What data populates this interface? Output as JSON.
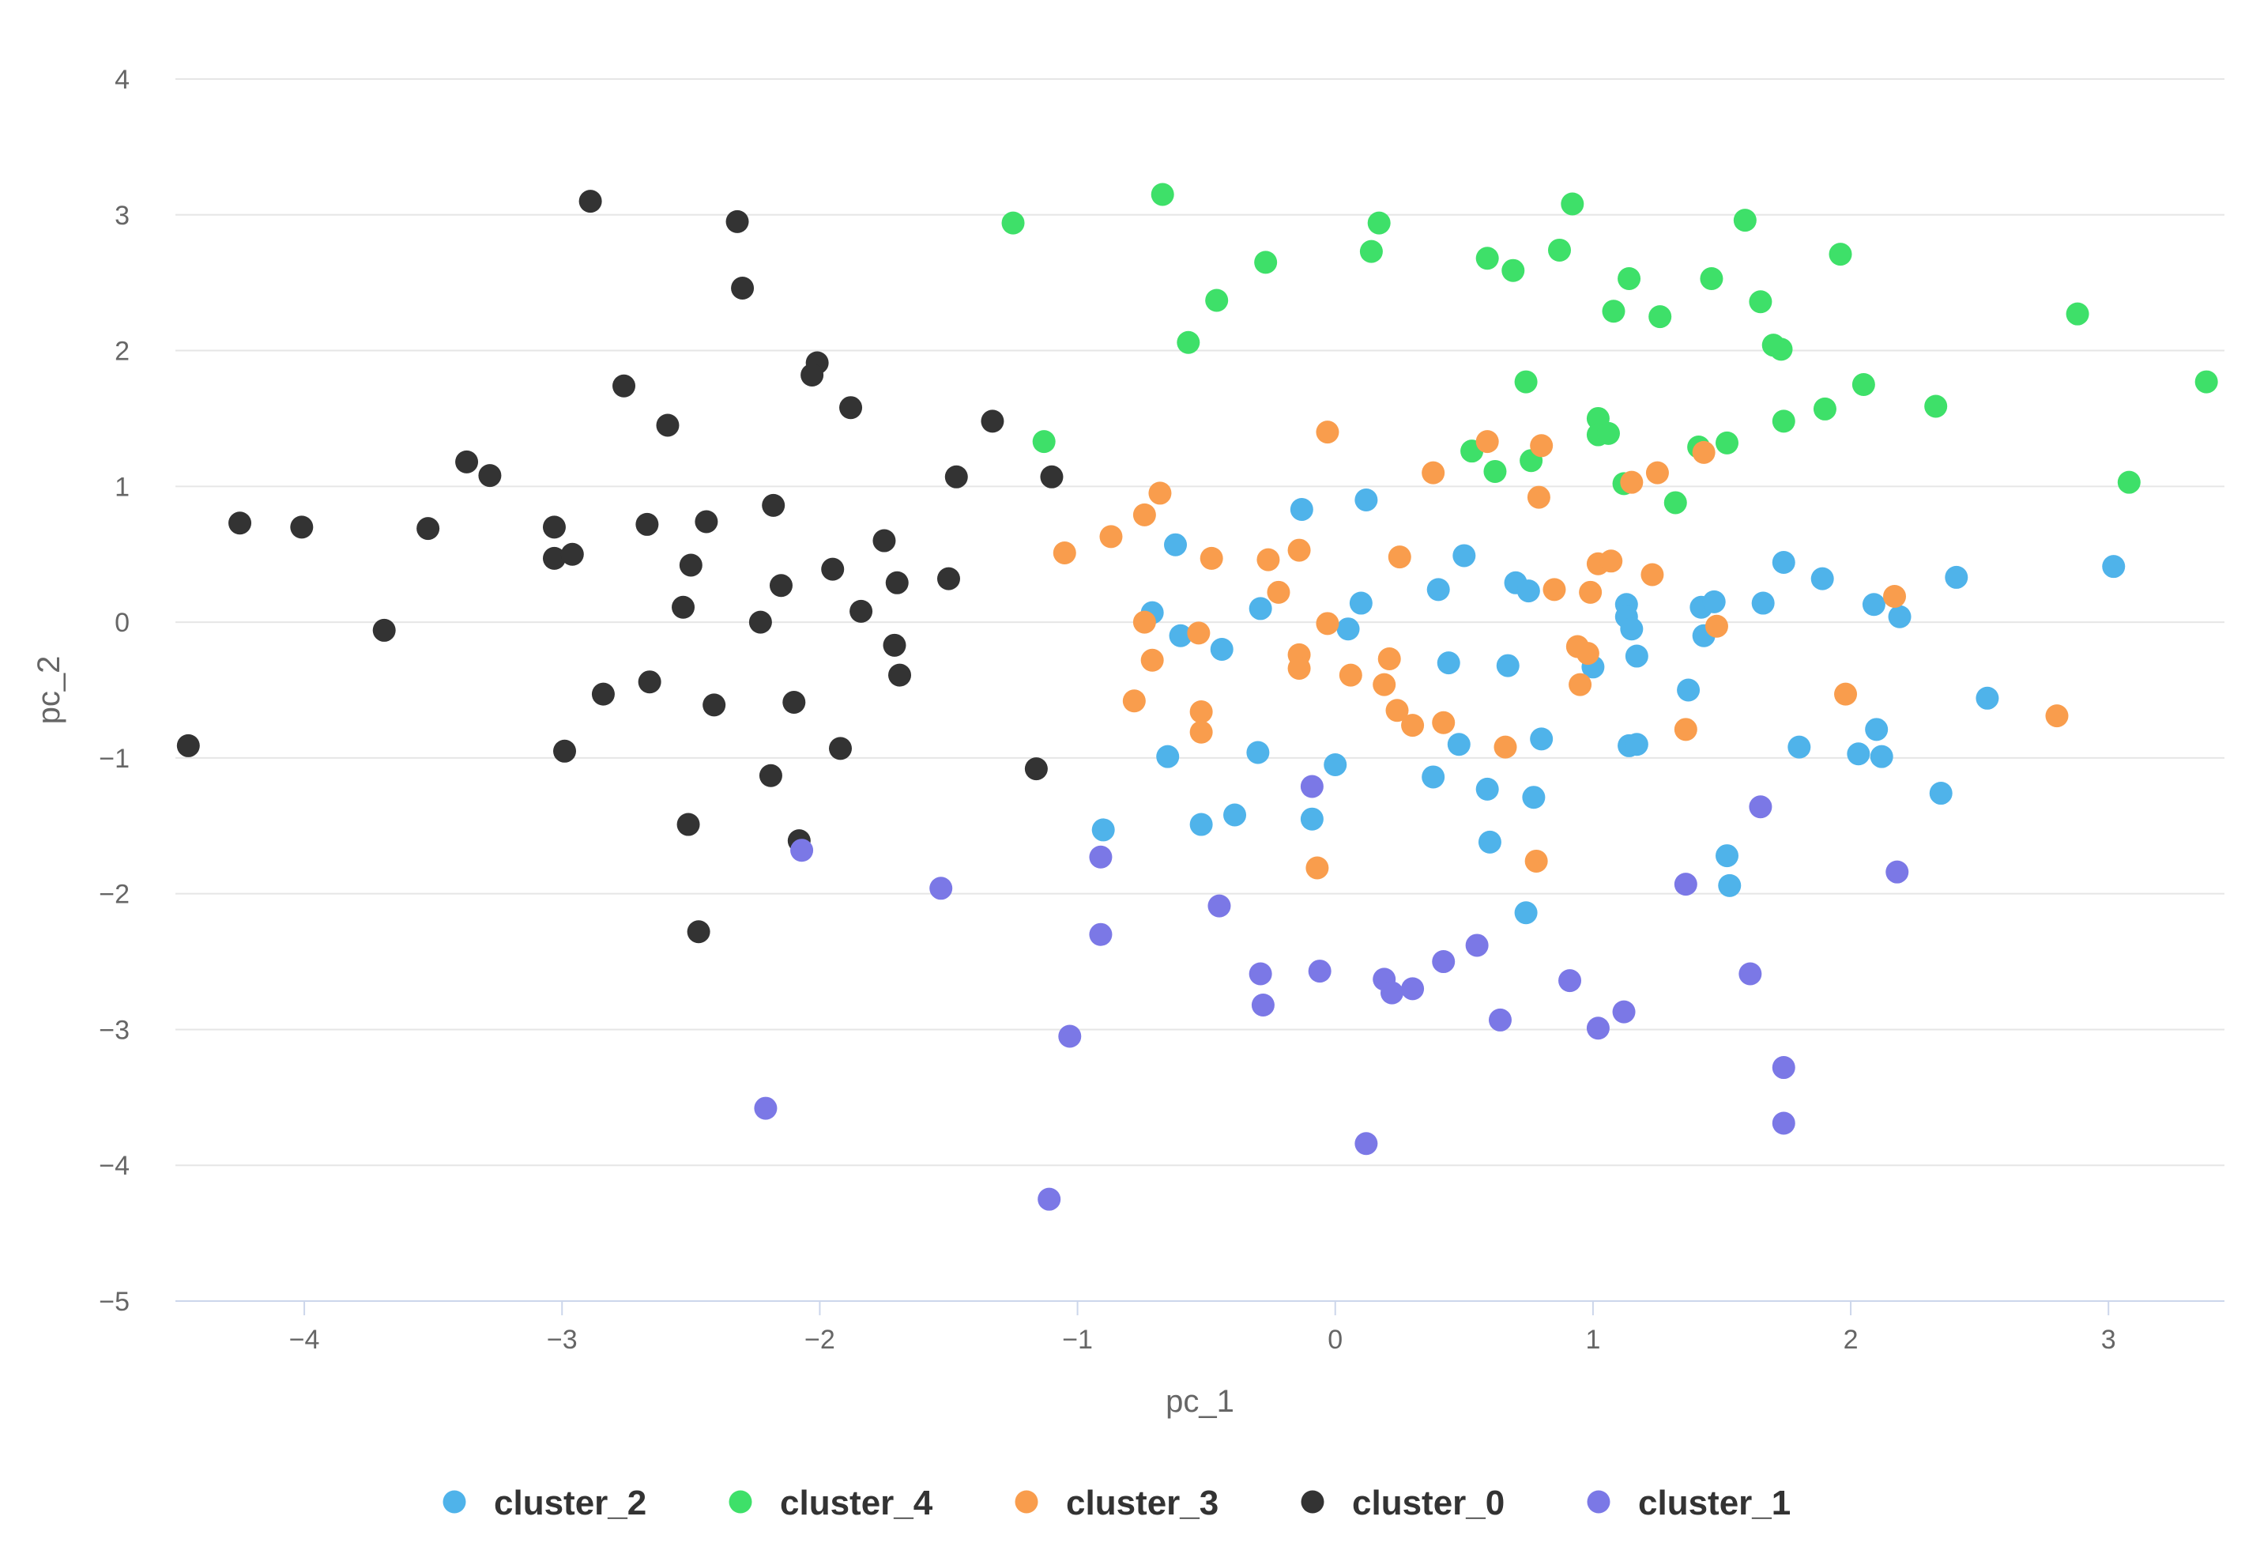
{
  "chart_data": {
    "type": "scatter",
    "xlabel": "pc_1",
    "ylabel": "pc_2",
    "xlim": [
      -4.5,
      3.45
    ],
    "ylim": [
      -5,
      4
    ],
    "x_ticks": [
      -4,
      -3,
      -2,
      -1,
      0,
      1,
      2,
      3
    ],
    "y_ticks": [
      -5,
      -4,
      -3,
      -2,
      -1,
      0,
      1,
      2,
      3,
      4
    ],
    "x_tick_labels": [
      "−4",
      "−3",
      "−2",
      "−1",
      "0",
      "1",
      "2",
      "3"
    ],
    "y_tick_labels": [
      "−5",
      "−4",
      "−3",
      "−2",
      "−1",
      "0",
      "1",
      "2",
      "3",
      "4"
    ],
    "grid": "horizontal",
    "legend_position": "bottom",
    "series": [
      {
        "name": "cluster_2",
        "color": "#4fb3ea",
        "points": [
          [
            -0.13,
            0.83
          ],
          [
            0.12,
            0.9
          ],
          [
            -0.62,
            0.57
          ],
          [
            0.5,
            0.49
          ],
          [
            -0.71,
            0.07
          ],
          [
            -0.6,
            -0.1
          ],
          [
            -0.44,
            -0.2
          ],
          [
            -0.29,
            0.1
          ],
          [
            0.1,
            0.14
          ],
          [
            0.05,
            -0.05
          ],
          [
            0.4,
            0.24
          ],
          [
            0.7,
            0.29
          ],
          [
            0.75,
            0.23
          ],
          [
            1.13,
            0.13
          ],
          [
            1.42,
            0.11
          ],
          [
            1.47,
            0.15
          ],
          [
            1.66,
            0.14
          ],
          [
            1.74,
            0.44
          ],
          [
            1.89,
            0.32
          ],
          [
            2.09,
            0.13
          ],
          [
            2.19,
            0.04
          ],
          [
            2.41,
            0.33
          ],
          [
            3.02,
            0.41
          ],
          [
            1.13,
            0.04
          ],
          [
            1.15,
            -0.05
          ],
          [
            1.0,
            -0.33
          ],
          [
            1.17,
            -0.25
          ],
          [
            1.43,
            -0.1
          ],
          [
            0.44,
            -0.3
          ],
          [
            0.67,
            -0.32
          ],
          [
            1.37,
            -0.5
          ],
          [
            -0.65,
            -0.99
          ],
          [
            -0.3,
            -0.96
          ],
          [
            0.0,
            -1.05
          ],
          [
            0.48,
            -0.9
          ],
          [
            0.8,
            -0.86
          ],
          [
            1.14,
            -0.91
          ],
          [
            1.17,
            -0.9
          ],
          [
            1.8,
            -0.92
          ],
          [
            2.03,
            -0.97
          ],
          [
            2.1,
            -0.79
          ],
          [
            2.12,
            -0.99
          ],
          [
            2.53,
            -0.56
          ],
          [
            -0.09,
            -1.45
          ],
          [
            0.38,
            -1.14
          ],
          [
            0.59,
            -1.23
          ],
          [
            0.77,
            -1.29
          ],
          [
            -0.52,
            -1.49
          ],
          [
            -0.39,
            -1.42
          ],
          [
            -0.9,
            -1.53
          ],
          [
            0.6,
            -1.62
          ],
          [
            1.52,
            -1.72
          ],
          [
            1.53,
            -1.94
          ],
          [
            0.74,
            -2.14
          ],
          [
            2.35,
            -1.26
          ]
        ]
      },
      {
        "name": "cluster_4",
        "color": "#3ee069",
        "points": [
          [
            -1.25,
            2.94
          ],
          [
            -0.67,
            3.15
          ],
          [
            -0.46,
            2.37
          ],
          [
            -0.57,
            2.06
          ],
          [
            -0.27,
            2.65
          ],
          [
            0.14,
            2.73
          ],
          [
            0.17,
            2.94
          ],
          [
            0.59,
            2.68
          ],
          [
            0.69,
            2.59
          ],
          [
            0.87,
            2.74
          ],
          [
            0.92,
            3.08
          ],
          [
            1.08,
            2.29
          ],
          [
            1.14,
            2.53
          ],
          [
            1.26,
            2.25
          ],
          [
            1.46,
            2.53
          ],
          [
            1.59,
            2.96
          ],
          [
            1.65,
            2.36
          ],
          [
            1.7,
            2.04
          ],
          [
            1.73,
            2.01
          ],
          [
            1.96,
            2.71
          ],
          [
            2.05,
            1.75
          ],
          [
            2.33,
            1.59
          ],
          [
            2.88,
            2.27
          ],
          [
            3.38,
            1.77
          ],
          [
            -1.13,
            1.33
          ],
          [
            0.74,
            1.77
          ],
          [
            0.76,
            1.19
          ],
          [
            0.62,
            1.11
          ],
          [
            0.53,
            1.26
          ],
          [
            1.02,
            1.5
          ],
          [
            1.02,
            1.38
          ],
          [
            1.06,
            1.39
          ],
          [
            1.12,
            1.02
          ],
          [
            1.32,
            0.88
          ],
          [
            1.41,
            1.29
          ],
          [
            1.52,
            1.32
          ],
          [
            1.74,
            1.48
          ],
          [
            1.9,
            1.57
          ],
          [
            3.08,
            1.03
          ]
        ]
      },
      {
        "name": "cluster_3",
        "color": "#f99d4d",
        "points": [
          [
            -1.05,
            0.51
          ],
          [
            -0.87,
            0.63
          ],
          [
            -0.74,
            0.79
          ],
          [
            -0.68,
            0.95
          ],
          [
            -0.03,
            1.4
          ],
          [
            -0.26,
            0.46
          ],
          [
            -0.14,
            0.53
          ],
          [
            -0.48,
            0.47
          ],
          [
            0.25,
            0.48
          ],
          [
            0.38,
            1.1
          ],
          [
            0.59,
            1.33
          ],
          [
            0.8,
            1.3
          ],
          [
            0.79,
            0.92
          ],
          [
            1.15,
            1.03
          ],
          [
            1.25,
            1.1
          ],
          [
            1.43,
            1.25
          ],
          [
            -0.22,
            0.22
          ],
          [
            0.85,
            0.24
          ],
          [
            0.99,
            0.22
          ],
          [
            1.02,
            0.43
          ],
          [
            1.07,
            0.45
          ],
          [
            1.23,
            0.35
          ],
          [
            -0.74,
            0.0
          ],
          [
            -0.53,
            -0.08
          ],
          [
            -0.71,
            -0.28
          ],
          [
            -0.14,
            -0.24
          ],
          [
            -0.14,
            -0.34
          ],
          [
            -0.03,
            -0.01
          ],
          [
            0.06,
            -0.39
          ],
          [
            0.19,
            -0.46
          ],
          [
            0.21,
            -0.27
          ],
          [
            0.24,
            -0.65
          ],
          [
            0.3,
            -0.76
          ],
          [
            0.42,
            -0.74
          ],
          [
            0.66,
            -0.92
          ],
          [
            0.94,
            -0.18
          ],
          [
            0.98,
            -0.23
          ],
          [
            0.95,
            -0.46
          ],
          [
            1.48,
            -0.03
          ],
          [
            -0.78,
            -0.58
          ],
          [
            -0.52,
            -0.66
          ],
          [
            -0.52,
            -0.81
          ],
          [
            -0.07,
            -1.81
          ],
          [
            0.78,
            -1.76
          ],
          [
            1.36,
            -0.79
          ],
          [
            1.98,
            -0.53
          ],
          [
            2.17,
            0.19
          ],
          [
            2.8,
            -0.69
          ]
        ]
      },
      {
        "name": "cluster_0",
        "color": "#333333",
        "points": [
          [
            -2.89,
            3.1
          ],
          [
            -2.32,
            2.95
          ],
          [
            -2.3,
            2.46
          ],
          [
            -2.01,
            1.91
          ],
          [
            -2.03,
            1.82
          ],
          [
            -1.88,
            1.58
          ],
          [
            -2.76,
            1.74
          ],
          [
            -2.59,
            1.45
          ],
          [
            -1.33,
            1.48
          ],
          [
            -1.47,
            1.07
          ],
          [
            -1.1,
            1.07
          ],
          [
            -4.25,
            0.73
          ],
          [
            -4.01,
            0.7
          ],
          [
            -3.52,
            0.69
          ],
          [
            -3.37,
            1.18
          ],
          [
            -3.28,
            1.08
          ],
          [
            -3.03,
            0.7
          ],
          [
            -3.03,
            0.47
          ],
          [
            -2.96,
            0.5
          ],
          [
            -2.67,
            0.72
          ],
          [
            -2.44,
            0.74
          ],
          [
            -2.18,
            0.86
          ],
          [
            -2.5,
            0.42
          ],
          [
            -2.15,
            0.27
          ],
          [
            -1.95,
            0.39
          ],
          [
            -1.75,
            0.6
          ],
          [
            -1.7,
            0.29
          ],
          [
            -1.5,
            0.32
          ],
          [
            -2.53,
            0.11
          ],
          [
            -2.23,
            0.0
          ],
          [
            -1.84,
            0.08
          ],
          [
            -1.71,
            -0.17
          ],
          [
            -1.69,
            -0.39
          ],
          [
            -3.69,
            -0.06
          ],
          [
            -4.45,
            -0.91
          ],
          [
            -2.84,
            -0.53
          ],
          [
            -2.66,
            -0.44
          ],
          [
            -2.41,
            -0.61
          ],
          [
            -2.1,
            -0.59
          ],
          [
            -1.92,
            -0.93
          ],
          [
            -2.99,
            -0.95
          ],
          [
            -2.19,
            -1.13
          ],
          [
            -1.16,
            -1.08
          ],
          [
            -2.51,
            -1.49
          ],
          [
            -2.08,
            -1.61
          ],
          [
            -2.47,
            -2.28
          ]
        ]
      },
      {
        "name": "cluster_1",
        "color": "#7b78e6",
        "points": [
          [
            -2.07,
            -1.68
          ],
          [
            -1.53,
            -1.96
          ],
          [
            -0.91,
            -1.73
          ],
          [
            -0.91,
            -2.3
          ],
          [
            -0.45,
            -2.09
          ],
          [
            -0.29,
            -2.59
          ],
          [
            -0.28,
            -2.82
          ],
          [
            -0.09,
            -1.21
          ],
          [
            -0.06,
            -2.57
          ],
          [
            0.19,
            -2.63
          ],
          [
            0.22,
            -2.73
          ],
          [
            0.3,
            -2.7
          ],
          [
            0.42,
            -2.5
          ],
          [
            0.55,
            -2.38
          ],
          [
            0.64,
            -2.93
          ],
          [
            0.91,
            -2.64
          ],
          [
            1.02,
            -2.99
          ],
          [
            1.12,
            -2.87
          ],
          [
            1.36,
            -1.93
          ],
          [
            1.61,
            -2.59
          ],
          [
            1.65,
            -1.36
          ],
          [
            2.18,
            -1.84
          ],
          [
            1.74,
            -3.28
          ],
          [
            1.74,
            -3.69
          ],
          [
            -1.03,
            -3.05
          ],
          [
            -2.21,
            -3.58
          ],
          [
            -1.11,
            -4.25
          ],
          [
            0.12,
            -3.84
          ]
        ]
      }
    ]
  }
}
